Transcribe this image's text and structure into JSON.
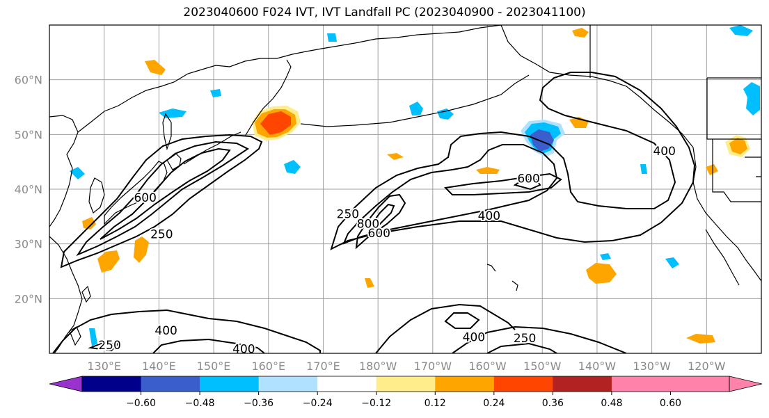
{
  "title": "2023040600 F024 IVT, IVT Landfall PC (2023040900 - 2023041100)",
  "map": {
    "lon_range": [
      120,
      250
    ],
    "lat_range": [
      10,
      70
    ],
    "lat_ticks": [
      {
        "value": 20,
        "label": "20°N"
      },
      {
        "value": 30,
        "label": "30°N"
      },
      {
        "value": 40,
        "label": "40°N"
      },
      {
        "value": 50,
        "label": "50°N"
      },
      {
        "value": 60,
        "label": "60°N"
      }
    ],
    "lon_ticks": [
      {
        "value": 130,
        "label": "130°E"
      },
      {
        "value": 140,
        "label": "140°E"
      },
      {
        "value": 150,
        "label": "150°E"
      },
      {
        "value": 160,
        "label": "160°E"
      },
      {
        "value": 170,
        "label": "170°E"
      },
      {
        "value": 180,
        "label": "180°W"
      },
      {
        "value": 190,
        "label": "170°W"
      },
      {
        "value": 200,
        "label": "160°W"
      },
      {
        "value": 210,
        "label": "150°W"
      },
      {
        "value": 220,
        "label": "140°W"
      },
      {
        "value": 230,
        "label": "130°W"
      },
      {
        "value": 240,
        "label": "120°W"
      }
    ],
    "contour_labels": [
      {
        "text": "600",
        "lon": 137.5,
        "lat": 38.5
      },
      {
        "text": "250",
        "lon": 140.5,
        "lat": 31.8
      },
      {
        "text": "250",
        "lon": 174.5,
        "lat": 35.5
      },
      {
        "text": "800",
        "lon": 178.2,
        "lat": 33.7
      },
      {
        "text": "600",
        "lon": 180.2,
        "lat": 32.0
      },
      {
        "text": "400",
        "lon": 200.3,
        "lat": 35.2
      },
      {
        "text": "600",
        "lon": 207.5,
        "lat": 42.0
      },
      {
        "text": "400",
        "lon": 232.3,
        "lat": 47.0
      },
      {
        "text": "400",
        "lon": 141.3,
        "lat": 14.2
      },
      {
        "text": "250",
        "lon": 131.0,
        "lat": 11.5
      },
      {
        "text": "400",
        "lon": 155.5,
        "lat": 10.8
      },
      {
        "text": "400",
        "lon": 197.5,
        "lat": 13.0
      },
      {
        "text": "250",
        "lon": 206.8,
        "lat": 12.8
      }
    ]
  },
  "colorbar": {
    "colors": [
      "#9a32cd",
      "#00008b",
      "#3a5fcd",
      "#00bfff",
      "#b0e2ff",
      "#ffffff",
      "#ffec8b",
      "#ffa500",
      "#ff4500",
      "#b22222",
      "#ff82ab"
    ],
    "boundaries": [
      -0.6,
      -0.48,
      -0.36,
      -0.24,
      -0.12,
      0.12,
      0.24,
      0.36,
      0.48,
      0.6
    ],
    "tick_labels": [
      "−0.60",
      "−0.48",
      "−0.36",
      "−0.24",
      "−0.12",
      "0.12",
      "0.24",
      "0.36",
      "0.48",
      "0.60"
    ]
  }
}
